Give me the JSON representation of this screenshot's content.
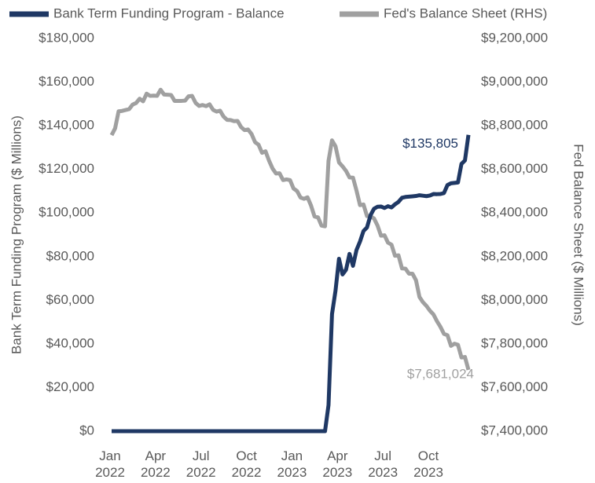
{
  "chart_data": {
    "type": "line",
    "y_label": "Bank Term Funding Program ($ Millions)",
    "y2_label": "Fed Balance Sheet ($ Millions)",
    "categories": [
      "Jan 2022",
      null,
      null,
      null,
      null,
      null,
      null,
      null,
      null,
      null,
      null,
      null,
      null,
      "Apr 2022",
      null,
      null,
      null,
      null,
      null,
      null,
      null,
      null,
      null,
      null,
      null,
      null,
      "Jul 2022",
      null,
      null,
      null,
      null,
      null,
      null,
      null,
      null,
      null,
      null,
      null,
      null,
      "Oct 2022",
      null,
      null,
      null,
      null,
      null,
      null,
      null,
      null,
      null,
      null,
      null,
      null,
      "Jan 2023",
      null,
      null,
      null,
      null,
      null,
      null,
      null,
      null,
      null,
      null,
      null,
      null,
      "Apr 2023",
      null,
      null,
      null,
      null,
      null,
      null,
      null,
      null,
      null,
      null,
      null,
      null,
      "Jul 2023",
      null,
      null,
      null,
      null,
      null,
      null,
      null,
      null,
      null,
      null,
      null,
      null,
      "Oct 2023",
      null,
      null,
      null,
      null,
      null,
      null,
      null,
      null,
      null,
      null,
      null
    ],
    "series": [
      {
        "name": "Bank Term Funding Program - Balance",
        "color": "#1f3864",
        "axis": "y",
        "values": [
          0,
          0,
          0,
          0,
          0,
          0,
          0,
          0,
          0,
          0,
          0,
          0,
          0,
          0,
          0,
          0,
          0,
          0,
          0,
          0,
          0,
          0,
          0,
          0,
          0,
          0,
          0,
          0,
          0,
          0,
          0,
          0,
          0,
          0,
          0,
          0,
          0,
          0,
          0,
          0,
          0,
          0,
          0,
          0,
          0,
          0,
          0,
          0,
          0,
          0,
          0,
          0,
          0,
          0,
          0,
          0,
          0,
          0,
          0,
          0,
          0,
          0,
          11943,
          53669,
          64403,
          79021,
          71837,
          73982,
          81267,
          75778,
          83062,
          86930,
          91762,
          93378,
          98974,
          101943,
          102866,
          102978,
          102311,
          103113,
          102545,
          103983,
          105113,
          106979,
          107354,
          107495,
          107641,
          107813,
          108143,
          107928,
          107721,
          108022,
          108703,
          108653,
          108727,
          109156,
          112826,
          113614,
          113796,
          113998,
          122520,
          124112,
          135805
        ],
        "value_labels": [
          null,
          null,
          null,
          null,
          null,
          null,
          null,
          null,
          null,
          null,
          null,
          null,
          null,
          null,
          null,
          null,
          null,
          null,
          null,
          null,
          null,
          null,
          null,
          null,
          null,
          null,
          null,
          null,
          null,
          null,
          null,
          null,
          null,
          null,
          null,
          null,
          null,
          null,
          null,
          null,
          null,
          null,
          null,
          null,
          null,
          null,
          null,
          null,
          null,
          null,
          null,
          null,
          null,
          null,
          null,
          null,
          null,
          null,
          null,
          null,
          null,
          null,
          null,
          null,
          null,
          null,
          null,
          null,
          null,
          null,
          null,
          null,
          null,
          null,
          null,
          null,
          null,
          null,
          null,
          null,
          null,
          null,
          null,
          null,
          null,
          null,
          null,
          null,
          null,
          null,
          null,
          null,
          null,
          null,
          null,
          null,
          null,
          null,
          null,
          null,
          null,
          null,
          "$135,805"
        ]
      },
      {
        "name": "Fed's Balance Sheet (RHS)",
        "color": "#a0a0a0",
        "axis": "y2",
        "values": [
          8757000,
          8788000,
          8866000,
          8868000,
          8872000,
          8876000,
          8897000,
          8904000,
          8924000,
          8912000,
          8947000,
          8937000,
          8938000,
          8937000,
          8965000,
          8943000,
          8942000,
          8941000,
          8914000,
          8914000,
          8914000,
          8915000,
          8935000,
          8937000,
          8905000,
          8891000,
          8895000,
          8890000,
          8898000,
          8873000,
          8865000,
          8869000,
          8842000,
          8827000,
          8826000,
          8821000,
          8822000,
          8794000,
          8780000,
          8783000,
          8762000,
          8725000,
          8713000,
          8676000,
          8683000,
          8640000,
          8604000,
          8581000,
          8582000,
          8551000,
          8554000,
          8551000,
          8512000,
          8501000,
          8471000,
          8465000,
          8472000,
          8434000,
          8384000,
          8380000,
          8342000,
          8339000,
          8639000,
          8733000,
          8706000,
          8632000,
          8614000,
          8593000,
          8563000,
          8562000,
          8503000,
          8436000,
          8439000,
          8386000,
          8385000,
          8375000,
          8343000,
          8296000,
          8298000,
          8264000,
          8255000,
          8204000,
          8206000,
          8146000,
          8145000,
          8122000,
          8122000,
          8092000,
          8015000,
          7991000,
          7974000,
          7952000,
          7935000,
          7904000,
          7878000,
          7846000,
          7840000,
          7791000,
          7801000,
          7796000,
          7738000,
          7740000,
          7681024
        ],
        "value_labels": [
          null,
          null,
          null,
          null,
          null,
          null,
          null,
          null,
          null,
          null,
          null,
          null,
          null,
          null,
          null,
          null,
          null,
          null,
          null,
          null,
          null,
          null,
          null,
          null,
          null,
          null,
          null,
          null,
          null,
          null,
          null,
          null,
          null,
          null,
          null,
          null,
          null,
          null,
          null,
          null,
          null,
          null,
          null,
          null,
          null,
          null,
          null,
          null,
          null,
          null,
          null,
          null,
          null,
          null,
          null,
          null,
          null,
          null,
          null,
          null,
          null,
          null,
          null,
          null,
          null,
          null,
          null,
          null,
          null,
          null,
          null,
          null,
          null,
          null,
          null,
          null,
          null,
          null,
          null,
          null,
          null,
          null,
          null,
          null,
          null,
          null,
          null,
          null,
          null,
          null,
          null,
          null,
          null,
          null,
          null,
          null,
          null,
          null,
          null,
          null,
          null,
          null,
          "$7,681,024"
        ]
      }
    ],
    "ylim": [
      0,
      180000
    ],
    "yticks": [
      {
        "value": 0,
        "label": "$0"
      },
      {
        "value": 20000,
        "label": "$20,000"
      },
      {
        "value": 40000,
        "label": "$40,000"
      },
      {
        "value": 60000,
        "label": "$60,000"
      },
      {
        "value": 80000,
        "label": "$80,000"
      },
      {
        "value": 100000,
        "label": "$100,000"
      },
      {
        "value": 120000,
        "label": "$120,000"
      },
      {
        "value": 140000,
        "label": "$140,000"
      },
      {
        "value": 160000,
        "label": "$160,000"
      },
      {
        "value": 180000,
        "label": "$180,000"
      }
    ],
    "y2lim": [
      7400000,
      9200000
    ],
    "y2ticks": [
      {
        "value": 7400000,
        "label": "$7,400,000"
      },
      {
        "value": 7600000,
        "label": "$7,600,000"
      },
      {
        "value": 7800000,
        "label": "$7,800,000"
      },
      {
        "value": 8000000,
        "label": "$8,000,000"
      },
      {
        "value": 8200000,
        "label": "$8,200,000"
      },
      {
        "value": 8400000,
        "label": "$8,400,000"
      },
      {
        "value": 8600000,
        "label": "$8,600,000"
      },
      {
        "value": 8800000,
        "label": "$8,800,000"
      },
      {
        "value": 9000000,
        "label": "$9,000,000"
      },
      {
        "value": 9200000,
        "label": "$9,200,000"
      }
    ],
    "grid": false,
    "legend": "top"
  }
}
